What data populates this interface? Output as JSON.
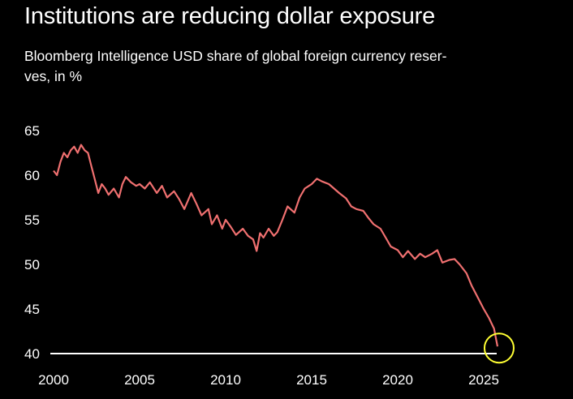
{
  "title": "Institutions are reducing dollar exposure",
  "subtitle": "Bloomberg Intelligence USD share of global foreign currency reser-\nves, in %",
  "colors": {
    "background": "#000000",
    "text": "#ffffff",
    "line": "#f07070",
    "baseline": "#ffffff",
    "highlight_circle": "#ffff33"
  },
  "chart_data": {
    "type": "line",
    "title": "Institutions are reducing dollar exposure",
    "subtitle": "Bloomberg Intelligence USD share of global foreign currency reserves, in %",
    "xlabel": "",
    "ylabel": "",
    "xlim": [
      2000,
      2026.5
    ],
    "ylim": [
      40,
      65
    ],
    "x_ticks": [
      2000,
      2005,
      2010,
      2015,
      2020,
      2025
    ],
    "y_ticks": [
      40,
      45,
      50,
      55,
      60,
      65
    ],
    "grid": false,
    "legend": "none",
    "annotation": "yellow circle highlighting latest value",
    "series": [
      {
        "x": [
          2000.0,
          2000.2,
          2000.4,
          2000.6,
          2000.8,
          2001.0,
          2001.2,
          2001.4,
          2001.6,
          2001.8,
          2002.0,
          2002.2,
          2002.4,
          2002.6,
          2002.8,
          2003.0,
          2003.2,
          2003.5,
          2003.8,
          2004.0,
          2004.2,
          2004.5,
          2004.8,
          2005.0,
          2005.3,
          2005.6,
          2006.0,
          2006.3,
          2006.6,
          2007.0,
          2007.3,
          2007.6,
          2008.0,
          2008.3,
          2008.6,
          2009.0,
          2009.2,
          2009.5,
          2009.8,
          2010.0,
          2010.3,
          2010.6,
          2011.0,
          2011.3,
          2011.6,
          2011.8,
          2012.0,
          2012.2,
          2012.5,
          2012.8,
          2013.0,
          2013.3,
          2013.6,
          2014.0,
          2014.3,
          2014.6,
          2015.0,
          2015.3,
          2015.6,
          2016.0,
          2016.3,
          2016.6,
          2017.0,
          2017.3,
          2017.6,
          2018.0,
          2018.3,
          2018.6,
          2019.0,
          2019.3,
          2019.6,
          2020.0,
          2020.3,
          2020.6,
          2021.0,
          2021.3,
          2021.6,
          2022.0,
          2022.3,
          2022.6,
          2023.0,
          2023.3,
          2023.6,
          2024.0,
          2024.3,
          2024.6,
          2025.0,
          2025.3,
          2025.6,
          2025.8
        ],
        "y": [
          60.5,
          60.0,
          61.5,
          62.5,
          62.0,
          62.8,
          63.2,
          62.5,
          63.4,
          62.8,
          62.5,
          61.0,
          59.5,
          58.0,
          59.0,
          58.5,
          57.8,
          58.5,
          57.5,
          59.0,
          59.8,
          59.2,
          58.8,
          59.0,
          58.5,
          59.2,
          58.0,
          58.8,
          57.5,
          58.2,
          57.3,
          56.2,
          58.0,
          56.8,
          55.5,
          56.2,
          54.5,
          55.5,
          54.0,
          55.0,
          54.2,
          53.3,
          54.0,
          53.2,
          52.8,
          51.5,
          53.5,
          53.0,
          54.0,
          53.2,
          53.6,
          55.0,
          56.5,
          55.8,
          57.5,
          58.5,
          59.0,
          59.6,
          59.3,
          59.0,
          58.5,
          58.0,
          57.4,
          56.5,
          56.2,
          56.0,
          55.2,
          54.5,
          54.0,
          53.0,
          52.0,
          51.6,
          50.8,
          51.5,
          50.6,
          51.2,
          50.8,
          51.2,
          51.6,
          50.2,
          50.5,
          50.6,
          50.0,
          49.0,
          47.6,
          46.5,
          45.0,
          44.0,
          42.8,
          40.8
        ]
      }
    ]
  }
}
